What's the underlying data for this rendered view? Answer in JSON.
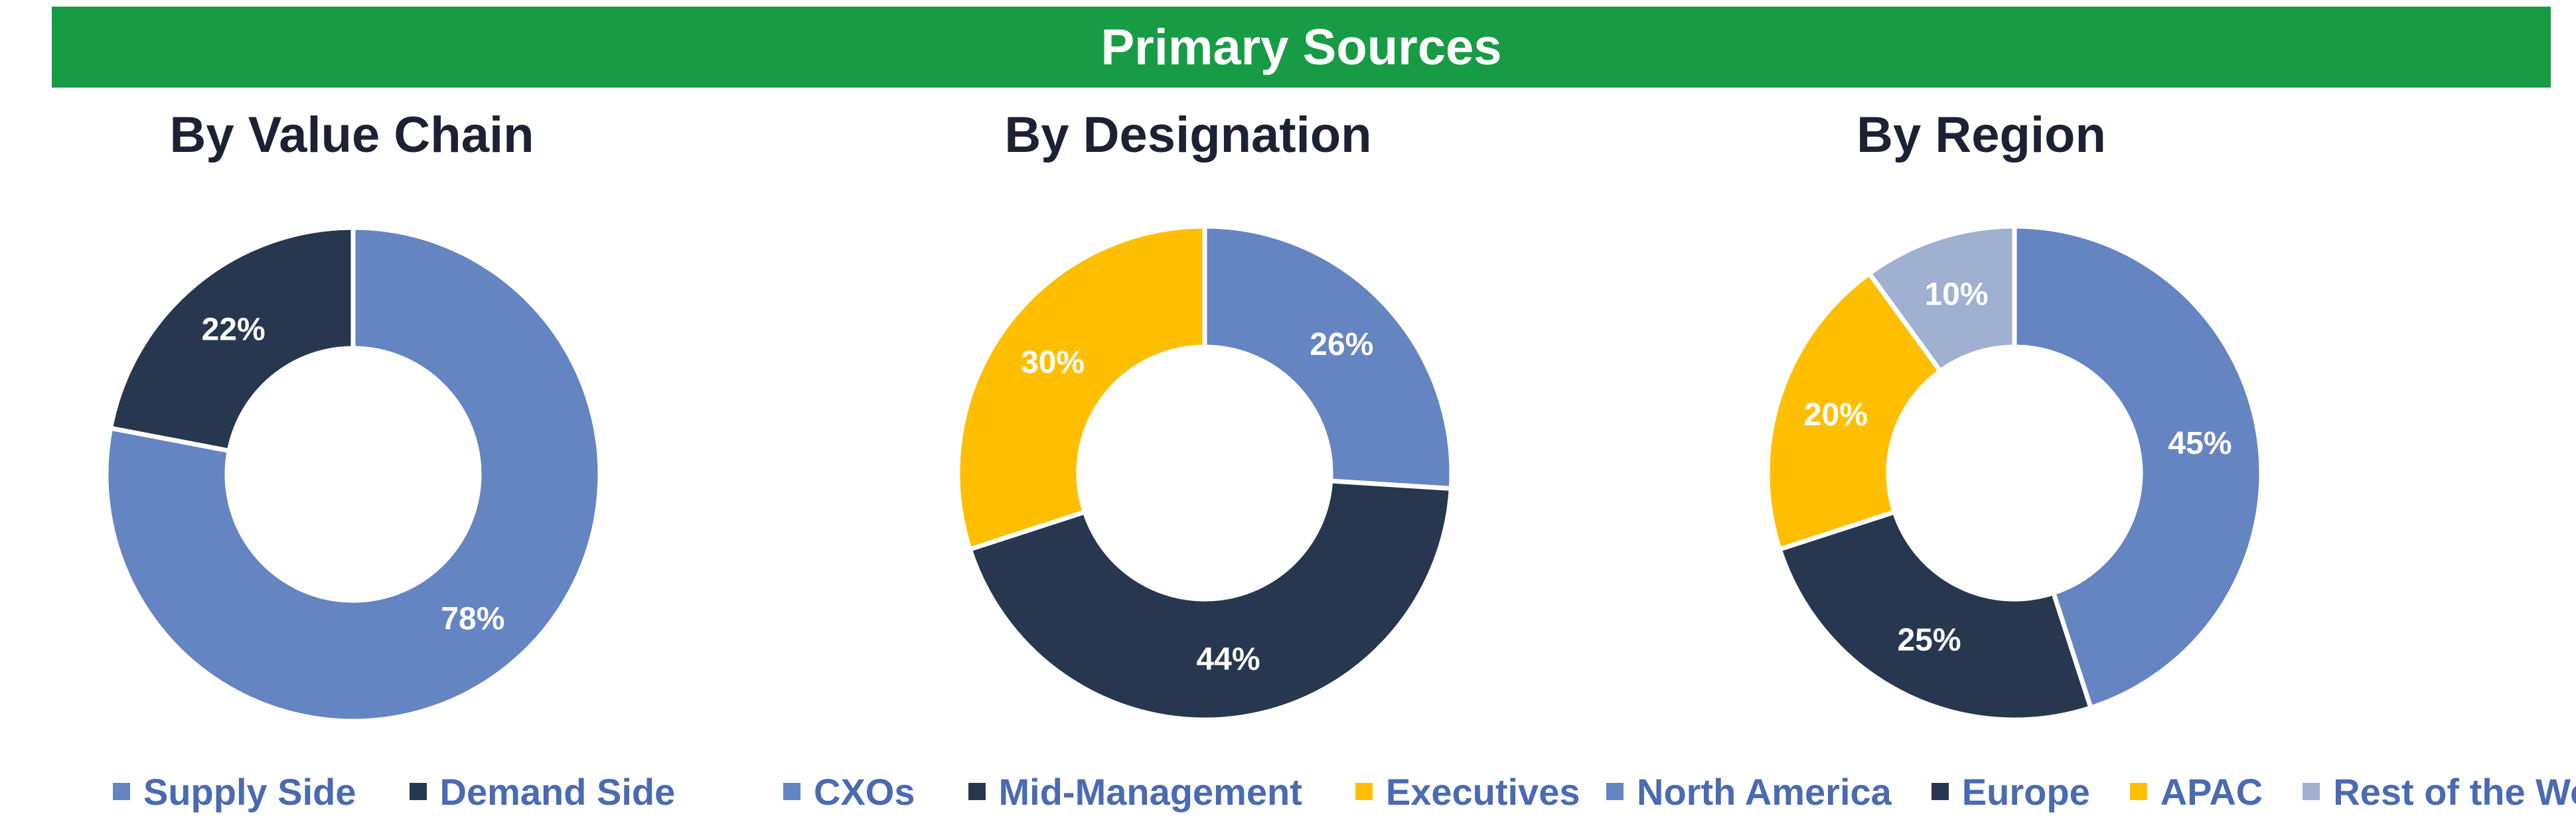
{
  "header": {
    "title": "Primary Sources"
  },
  "colors": {
    "banner": "#179c45",
    "blue": "#6584c2",
    "navy": "#283750",
    "gold": "#ffbf00",
    "lightblue": "#9fb0d0",
    "title_text": "#1c2233",
    "legend_text": "#4a6ab3"
  },
  "chart_data": [
    {
      "type": "pie",
      "title": "By Value Chain",
      "labels": [
        "Supply Side",
        "Demand Side"
      ],
      "values": [
        78,
        22
      ],
      "value_labels": [
        "78%",
        "22%"
      ],
      "colors": [
        "#6584c2",
        "#283750"
      ],
      "legend": "bottom"
    },
    {
      "type": "pie",
      "title": "By Designation",
      "labels": [
        "CXOs",
        "Mid-Management",
        "Executives"
      ],
      "values": [
        26,
        44,
        30
      ],
      "value_labels": [
        "26%",
        "44%",
        "30%"
      ],
      "colors": [
        "#6584c2",
        "#283750",
        "#ffbf00"
      ],
      "legend": "bottom"
    },
    {
      "type": "pie",
      "title": "By Region",
      "labels": [
        "North America",
        "Europe",
        "APAC",
        "Rest of the World"
      ],
      "values": [
        45,
        25,
        20,
        10
      ],
      "value_labels": [
        "45%",
        "25%",
        "20%",
        "10%"
      ],
      "colors": [
        "#6584c2",
        "#283750",
        "#ffbf00",
        "#9fb0d0"
      ],
      "legend": "bottom"
    }
  ]
}
